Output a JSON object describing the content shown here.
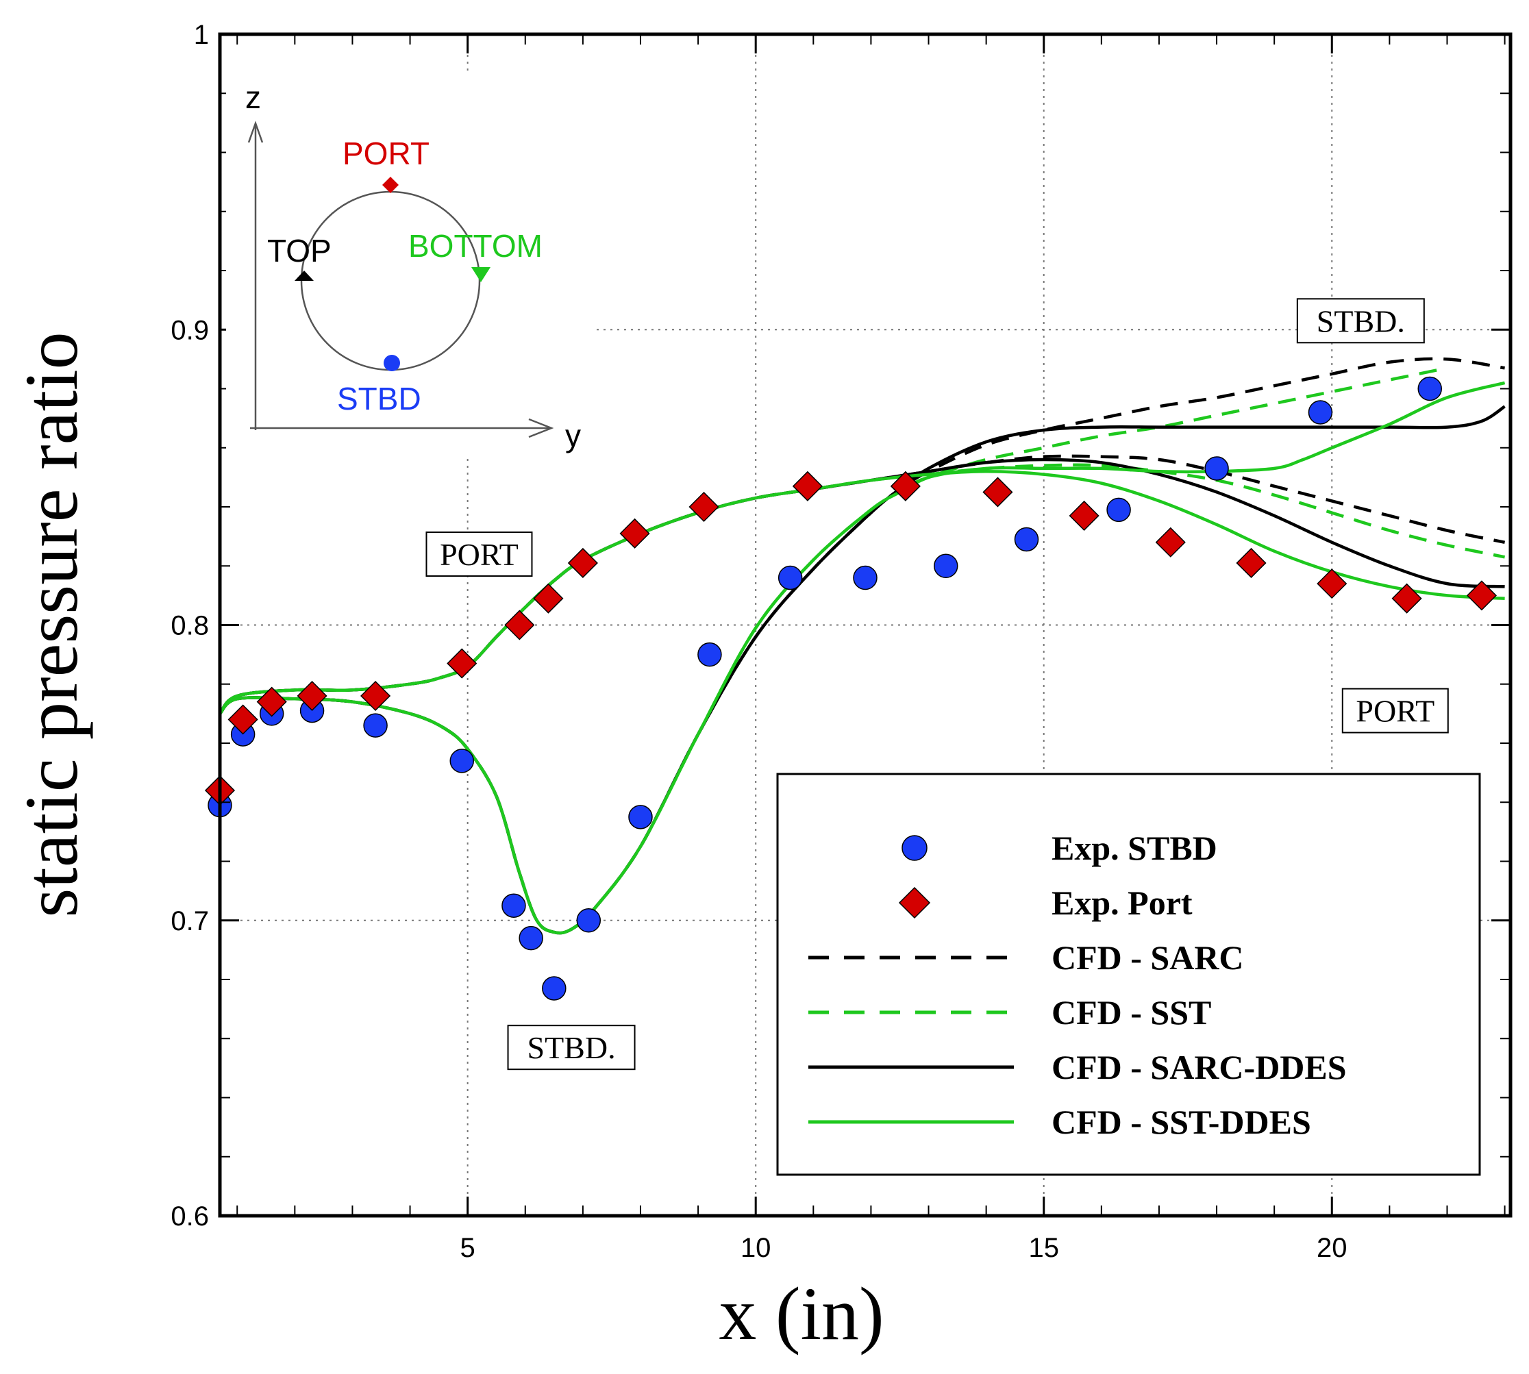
{
  "chart_data": {
    "type": "line",
    "title": "",
    "xlabel": "x (in)",
    "ylabel": "static pressure ratio",
    "xlim": [
      0.7,
      23.1
    ],
    "ylim": [
      0.6,
      1.0
    ],
    "xticks": [
      5,
      10,
      15,
      20
    ],
    "yticks": [
      0.6,
      0.7,
      0.8,
      0.9,
      1.0
    ],
    "ytick_labels": [
      "0.6",
      "0.7",
      "0.8",
      "0.9",
      "1"
    ],
    "xtick_labels": [
      "5",
      "10",
      "15",
      "20"
    ],
    "grid": "dotted",
    "legend_position": "bottom-right",
    "colors": {
      "stbd": "#1a3cf5",
      "port": "#d40000",
      "green": "#1ec81e",
      "black": "#000000"
    },
    "series": [
      {
        "name": "Exp. STBD",
        "kind": "scatter",
        "marker": "circle",
        "x": [
          0.7,
          1.1,
          1.6,
          2.3,
          3.4,
          4.9,
          5.8,
          6.1,
          6.5,
          7.1,
          8.0,
          9.2,
          10.6,
          11.9,
          13.3,
          14.7,
          16.3,
          18.0,
          19.8,
          21.7
        ],
        "y": [
          0.739,
          0.763,
          0.77,
          0.771,
          0.766,
          0.754,
          0.705,
          0.694,
          0.677,
          0.7,
          0.735,
          0.79,
          0.816,
          0.816,
          0.82,
          0.829,
          0.839,
          0.853,
          0.872,
          0.88
        ]
      },
      {
        "name": "Exp. Port",
        "kind": "scatter",
        "marker": "diamond",
        "x": [
          0.7,
          1.1,
          1.6,
          2.3,
          3.4,
          4.9,
          5.9,
          6.4,
          7.0,
          7.9,
          9.1,
          10.9,
          12.6,
          14.2,
          15.7,
          17.2,
          18.6,
          20.0,
          21.3,
          22.6
        ],
        "y": [
          0.744,
          0.768,
          0.774,
          0.776,
          0.776,
          0.787,
          0.8,
          0.809,
          0.821,
          0.831,
          0.84,
          0.847,
          0.847,
          0.845,
          0.837,
          0.828,
          0.821,
          0.814,
          0.809,
          0.81
        ]
      },
      {
        "name": "CFD - SARC",
        "kind": "line",
        "style": "dashed",
        "curves": [
          {
            "x": [
              0.7,
              1.0,
              2.0,
              3.0,
              4.0,
              4.6,
              5.0,
              5.5,
              5.9,
              6.2,
              6.5,
              6.8,
              7.2,
              8.0,
              9.0,
              10.0,
              11.0,
              12.0,
              12.5,
              13.0,
              14.0,
              15.0,
              16.0,
              17.0,
              18.0,
              19.0,
              20.0,
              21.0,
              22.0,
              23.0
            ],
            "y": [
              0.77,
              0.775,
              0.775,
              0.774,
              0.77,
              0.765,
              0.758,
              0.742,
              0.716,
              0.7,
              0.696,
              0.697,
              0.704,
              0.725,
              0.763,
              0.796,
              0.819,
              0.838,
              0.846,
              0.852,
              0.861,
              0.866,
              0.87,
              0.874,
              0.877,
              0.881,
              0.885,
              0.889,
              0.89,
              0.887
            ]
          },
          {
            "x": [
              0.7,
              1.0,
              2.0,
              3.0,
              4.0,
              4.5,
              5.0,
              5.5,
              6.0,
              6.5,
              7.0,
              8.0,
              9.0,
              10.0,
              11.0,
              12.0,
              13.0,
              14.0,
              15.0,
              16.0,
              17.0,
              18.0,
              19.0,
              20.0,
              21.0,
              22.0,
              23.0
            ],
            "y": [
              0.77,
              0.776,
              0.778,
              0.778,
              0.78,
              0.782,
              0.786,
              0.796,
              0.806,
              0.815,
              0.822,
              0.831,
              0.838,
              0.843,
              0.846,
              0.849,
              0.852,
              0.855,
              0.857,
              0.857,
              0.856,
              0.852,
              0.847,
              0.842,
              0.837,
              0.832,
              0.828
            ]
          }
        ]
      },
      {
        "name": "CFD - SST",
        "kind": "line",
        "style": "dashed",
        "curves": [
          {
            "x": [
              0.7,
              1.0,
              2.0,
              3.0,
              4.0,
              4.6,
              5.0,
              5.5,
              5.9,
              6.2,
              6.5,
              6.8,
              7.2,
              8.0,
              9.0,
              10.0,
              11.0,
              12.0,
              12.5,
              13.0,
              14.0,
              15.0,
              16.0,
              17.0,
              18.0,
              19.0,
              20.0,
              21.0,
              22.0
            ],
            "y": [
              0.77,
              0.775,
              0.775,
              0.774,
              0.77,
              0.765,
              0.758,
              0.742,
              0.716,
              0.7,
              0.696,
              0.697,
              0.704,
              0.725,
              0.763,
              0.799,
              0.822,
              0.839,
              0.845,
              0.85,
              0.856,
              0.86,
              0.864,
              0.867,
              0.871,
              0.875,
              0.879,
              0.883,
              0.887
            ]
          },
          {
            "x": [
              0.7,
              1.0,
              2.0,
              3.0,
              4.0,
              4.5,
              5.0,
              5.5,
              6.0,
              6.5,
              7.0,
              8.0,
              9.0,
              10.0,
              11.0,
              12.0,
              13.0,
              14.0,
              15.0,
              16.0,
              17.0,
              18.0,
              19.0,
              20.0,
              21.0,
              22.0,
              23.0
            ],
            "y": [
              0.77,
              0.776,
              0.778,
              0.778,
              0.78,
              0.782,
              0.786,
              0.796,
              0.806,
              0.815,
              0.822,
              0.831,
              0.838,
              0.843,
              0.846,
              0.849,
              0.851,
              0.853,
              0.854,
              0.854,
              0.852,
              0.849,
              0.844,
              0.838,
              0.832,
              0.827,
              0.823
            ]
          }
        ]
      },
      {
        "name": "CFD - SARC-DDES",
        "kind": "line",
        "style": "solid",
        "curves": [
          {
            "x": [
              0.7,
              1.0,
              2.0,
              3.0,
              4.0,
              4.6,
              5.0,
              5.5,
              5.9,
              6.2,
              6.5,
              6.8,
              7.2,
              8.0,
              9.0,
              10.0,
              11.0,
              12.0,
              12.5,
              13.0,
              14.0,
              15.0,
              16.0,
              17.0,
              18.0,
              19.0,
              20.0,
              21.0,
              22.0,
              22.6,
              23.0
            ],
            "y": [
              0.77,
              0.775,
              0.775,
              0.774,
              0.77,
              0.765,
              0.758,
              0.742,
              0.716,
              0.7,
              0.696,
              0.697,
              0.704,
              0.725,
              0.763,
              0.796,
              0.819,
              0.838,
              0.846,
              0.853,
              0.862,
              0.866,
              0.867,
              0.867,
              0.867,
              0.867,
              0.867,
              0.867,
              0.867,
              0.869,
              0.874
            ]
          },
          {
            "x": [
              0.7,
              1.0,
              2.0,
              3.0,
              4.0,
              4.5,
              5.0,
              5.5,
              6.0,
              6.5,
              7.0,
              8.0,
              9.0,
              10.0,
              11.0,
              12.0,
              13.0,
              14.0,
              15.0,
              16.0,
              17.0,
              18.0,
              19.0,
              20.0,
              21.0,
              22.0,
              23.0
            ],
            "y": [
              0.77,
              0.776,
              0.778,
              0.778,
              0.78,
              0.782,
              0.786,
              0.796,
              0.806,
              0.815,
              0.822,
              0.831,
              0.838,
              0.843,
              0.846,
              0.849,
              0.852,
              0.855,
              0.856,
              0.855,
              0.851,
              0.845,
              0.837,
              0.828,
              0.82,
              0.814,
              0.813
            ]
          }
        ]
      },
      {
        "name": "CFD - SST-DDES",
        "kind": "line",
        "style": "solid",
        "curves": [
          {
            "x": [
              0.7,
              1.0,
              2.0,
              3.0,
              4.0,
              4.6,
              5.0,
              5.5,
              5.9,
              6.2,
              6.5,
              6.8,
              7.2,
              8.0,
              9.0,
              10.0,
              11.0,
              12.0,
              12.5,
              13.0,
              14.0,
              15.0,
              16.0,
              17.0,
              18.0,
              19.0,
              19.5,
              20.0,
              21.0,
              22.0,
              23.0
            ],
            "y": [
              0.77,
              0.775,
              0.775,
              0.774,
              0.77,
              0.765,
              0.758,
              0.742,
              0.716,
              0.7,
              0.696,
              0.697,
              0.704,
              0.725,
              0.763,
              0.799,
              0.822,
              0.839,
              0.845,
              0.85,
              0.853,
              0.853,
              0.853,
              0.852,
              0.852,
              0.853,
              0.856,
              0.86,
              0.868,
              0.877,
              0.882
            ]
          },
          {
            "x": [
              0.7,
              1.0,
              2.0,
              3.0,
              4.0,
              4.5,
              5.0,
              5.5,
              6.0,
              6.5,
              7.0,
              8.0,
              9.0,
              10.0,
              11.0,
              12.0,
              13.0,
              14.0,
              15.0,
              16.0,
              17.0,
              18.0,
              19.0,
              20.0,
              21.0,
              22.0,
              23.0
            ],
            "y": [
              0.77,
              0.776,
              0.778,
              0.778,
              0.78,
              0.782,
              0.786,
              0.796,
              0.806,
              0.815,
              0.822,
              0.831,
              0.838,
              0.843,
              0.846,
              0.849,
              0.851,
              0.852,
              0.851,
              0.848,
              0.842,
              0.834,
              0.825,
              0.818,
              0.813,
              0.81,
              0.809
            ]
          }
        ]
      }
    ],
    "annotations": [
      {
        "text": "PORT",
        "x": 5.2,
        "y": 0.824
      },
      {
        "text": "STBD.",
        "x": 6.8,
        "y": 0.657
      },
      {
        "text": "STBD.",
        "x": 20.5,
        "y": 0.903
      },
      {
        "text": "PORT",
        "x": 21.1,
        "y": 0.771
      }
    ],
    "inset": {
      "axis_z": "z",
      "axis_y": "y",
      "port": "PORT",
      "top": "TOP",
      "bottom": "BOTTOM",
      "stbd": "STBD"
    }
  }
}
